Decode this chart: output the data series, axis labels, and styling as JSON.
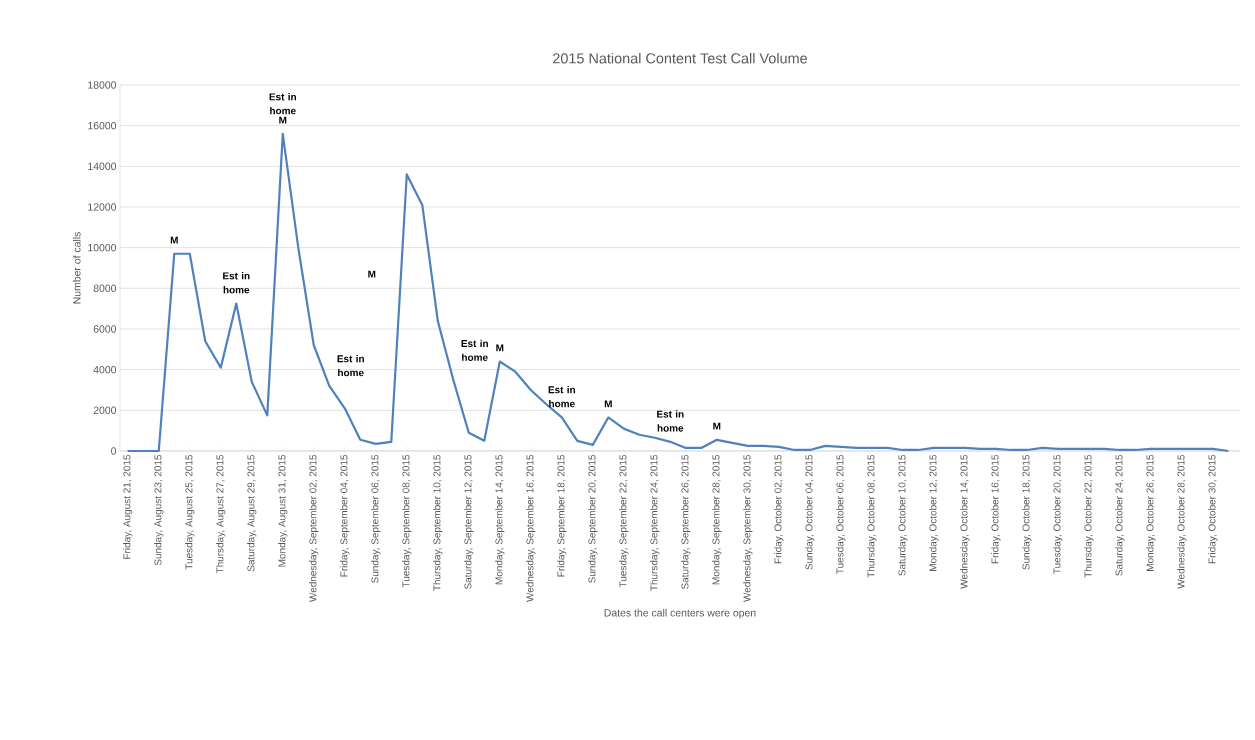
{
  "chart_data": {
    "type": "line",
    "title": "2015 National Content Test Call Volume",
    "xlabel": "Dates the call centers were open",
    "ylabel": "Number of calls",
    "x": [
      "2015-08-21",
      "2015-08-22",
      "2015-08-23",
      "2015-08-24",
      "2015-08-25",
      "2015-08-26",
      "2015-08-27",
      "2015-08-28",
      "2015-08-29",
      "2015-08-30",
      "2015-08-31",
      "2015-09-01",
      "2015-09-02",
      "2015-09-03",
      "2015-09-04",
      "2015-09-05",
      "2015-09-06",
      "2015-09-07",
      "2015-09-08",
      "2015-09-09",
      "2015-09-10",
      "2015-09-11",
      "2015-09-12",
      "2015-09-13",
      "2015-09-14",
      "2015-09-15",
      "2015-09-16",
      "2015-09-17",
      "2015-09-18",
      "2015-09-19",
      "2015-09-20",
      "2015-09-21",
      "2015-09-22",
      "2015-09-23",
      "2015-09-24",
      "2015-09-25",
      "2015-09-26",
      "2015-09-27",
      "2015-09-28",
      "2015-09-29",
      "2015-09-30",
      "2015-10-01",
      "2015-10-02",
      "2015-10-03",
      "2015-10-04",
      "2015-10-05",
      "2015-10-06",
      "2015-10-07",
      "2015-10-08",
      "2015-10-09",
      "2015-10-10",
      "2015-10-11",
      "2015-10-12",
      "2015-10-13",
      "2015-10-14",
      "2015-10-15",
      "2015-10-16",
      "2015-10-17",
      "2015-10-18",
      "2015-10-19",
      "2015-10-20",
      "2015-10-21",
      "2015-10-22",
      "2015-10-23",
      "2015-10-24",
      "2015-10-25",
      "2015-10-26",
      "2015-10-27",
      "2015-10-28",
      "2015-10-29",
      "2015-10-30",
      "2015-10-31"
    ],
    "series": [
      {
        "color": "#4f81bd",
        "values": [
          0,
          0,
          0,
          9700,
          9700,
          5400,
          4100,
          7250,
          3400,
          1750,
          15600,
          10000,
          5200,
          3200,
          2100,
          550,
          350,
          450,
          13600,
          12100,
          6400,
          3500,
          900,
          500,
          4400,
          3900,
          3000,
          2300,
          1650,
          500,
          300,
          1650,
          1100,
          800,
          650,
          450,
          150,
          150,
          550,
          400,
          250,
          250,
          200,
          50,
          50,
          250,
          200,
          150,
          150,
          150,
          50,
          50,
          150,
          150,
          150,
          100,
          100,
          50,
          50,
          150,
          100,
          100,
          100,
          100,
          50,
          50,
          100,
          100,
          100,
          100,
          100,
          0
        ]
      }
    ],
    "xlim": [
      "2015-08-20T12:00",
      "2015-10-31T18:00"
    ],
    "xticks": [
      {
        "value": "2015-08-21",
        "label": "Friday, August 21, 2015"
      },
      {
        "value": "2015-08-23",
        "label": "Sunday, August 23, 2015"
      },
      {
        "value": "2015-08-25",
        "label": "Tuesday, August 25, 2015"
      },
      {
        "value": "2015-08-27",
        "label": "Thursday, August 27, 2015"
      },
      {
        "value": "2015-08-29",
        "label": "Saturday, August 29, 2015"
      },
      {
        "value": "2015-08-31",
        "label": "Monday, August 31, 2015"
      },
      {
        "value": "2015-09-02",
        "label": "Wednesday, September 02, 2015"
      },
      {
        "value": "2015-09-04",
        "label": "Friday, September 04, 2015"
      },
      {
        "value": "2015-09-06",
        "label": "Sunday, September 06, 2015"
      },
      {
        "value": "2015-09-08",
        "label": "Tuesday, September 08, 2015"
      },
      {
        "value": "2015-09-10",
        "label": "Thursday, September 10, 2015"
      },
      {
        "value": "2015-09-12",
        "label": "Saturday, September 12, 2015"
      },
      {
        "value": "2015-09-14",
        "label": "Monday, September 14, 2015"
      },
      {
        "value": "2015-09-16",
        "label": "Wednesday, September 16, 2015"
      },
      {
        "value": "2015-09-18",
        "label": "Friday, September 18, 2015"
      },
      {
        "value": "2015-09-20",
        "label": "Sunday, September 20, 2015"
      },
      {
        "value": "2015-09-22",
        "label": "Tuesday, September 22, 2015"
      },
      {
        "value": "2015-09-24",
        "label": "Thursday, September 24, 2015"
      },
      {
        "value": "2015-09-26",
        "label": "Saturday, September 26, 2015"
      },
      {
        "value": "2015-09-28",
        "label": "Monday, September 28, 2015"
      },
      {
        "value": "2015-09-30",
        "label": "Wednesday, September 30, 2015"
      },
      {
        "value": "2015-10-02",
        "label": "Friday, October 02, 2015"
      },
      {
        "value": "2015-10-04",
        "label": "Sunday, October 04, 2015"
      },
      {
        "value": "2015-10-06",
        "label": "Tuesday, October 06, 2015"
      },
      {
        "value": "2015-10-08",
        "label": "Thursday, October 08, 2015"
      },
      {
        "value": "2015-10-10",
        "label": "Saturday, October 10, 2015"
      },
      {
        "value": "2015-10-12",
        "label": "Monday, October 12, 2015"
      },
      {
        "value": "2015-10-14",
        "label": "Wednesday, October 14, 2015"
      },
      {
        "value": "2015-10-16",
        "label": "Friday, October 16, 2015"
      },
      {
        "value": "2015-10-18",
        "label": "Sunday, October 18, 2015"
      },
      {
        "value": "2015-10-20",
        "label": "Tuesday, October 20, 2015"
      },
      {
        "value": "2015-10-22",
        "label": "Thursday, October 22, 2015"
      },
      {
        "value": "2015-10-24",
        "label": "Saturday, October 24, 2015"
      },
      {
        "value": "2015-10-26",
        "label": "Monday, October 26, 2015"
      },
      {
        "value": "2015-10-28",
        "label": "Wednesday, October 28, 2015"
      },
      {
        "value": "2015-10-30",
        "label": "Friday, October 30, 2015"
      }
    ],
    "ylim": [
      0,
      18000
    ],
    "yticks": [
      0,
      2000,
      4000,
      6000,
      8000,
      10000,
      12000,
      14000,
      16000,
      18000
    ],
    "grid": "y",
    "marker": "none",
    "line_style": "solid",
    "annotations": [
      {
        "text": "M",
        "x": "2015-08-24",
        "y": 9700
      },
      {
        "text": "Est in home",
        "x": "2015-08-28",
        "y": 7250
      },
      {
        "text": "M",
        "x": "2015-08-31",
        "y": 15600
      },
      {
        "text": "Est in home",
        "x": "2015-08-31",
        "y": 15600
      },
      {
        "text": "Est in home",
        "x": "2015-09-02T12:00",
        "y": 4200
      },
      {
        "text": "M",
        "x": "2015-09-07T15:00",
        "y": 8700
      },
      {
        "text": "Est in home",
        "x": "2015-09-10T12:00",
        "y": 4950
      },
      {
        "text": "M",
        "x": "2015-09-14",
        "y": 4400
      },
      {
        "text": "Est in home",
        "x": "2015-09-18",
        "y": 1650
      },
      {
        "text": "M",
        "x": "2015-09-21",
        "y": 1650
      },
      {
        "text": "Est in home",
        "x": "2015-09-25",
        "y": 450
      },
      {
        "text": "M",
        "x": "2015-09-28",
        "y": 550
      }
    ]
  }
}
